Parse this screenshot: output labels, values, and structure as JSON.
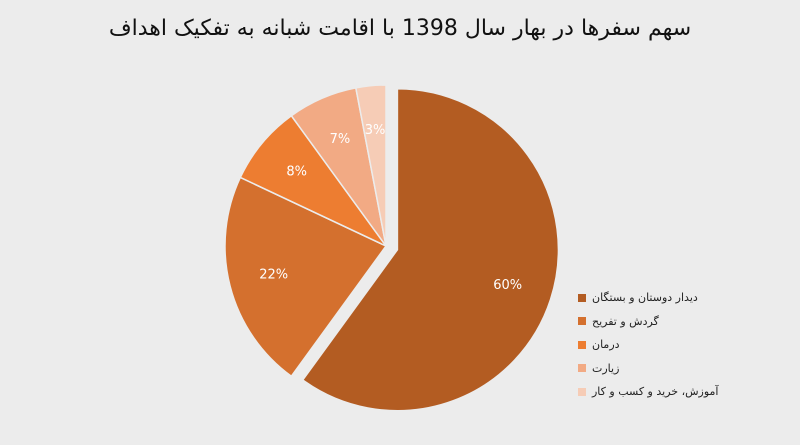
{
  "chart_data": {
    "type": "pie",
    "title": "سهم سفرها در بهار سال 1398 با اقامت شبانه به تفکیک اهداف",
    "categories": [
      "دیدار دوستان و بستگان",
      "گردش و تفریح",
      "درمان",
      "زیارت",
      "آموزش، خرید و کسب و کار"
    ],
    "values": [
      60,
      22,
      8,
      7,
      3
    ],
    "data_labels": [
      "60%",
      "22%",
      "8%",
      "7%",
      "3%"
    ],
    "colors": [
      "#b35c22",
      "#d4702e",
      "#ed7d31",
      "#f2aa84",
      "#f6ccb6"
    ],
    "exploded_slice": "دیدار دوستان و بستگان",
    "legend_position": "right"
  }
}
